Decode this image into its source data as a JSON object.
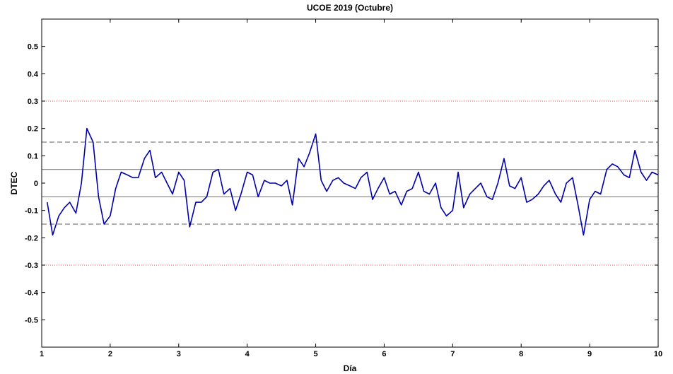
{
  "chart_data": {
    "type": "line",
    "title": "UCOE 2019 (Octubre)",
    "xlabel": "Día",
    "ylabel": "DTEC",
    "xlim": [
      1,
      10
    ],
    "ylim": [
      -0.6,
      0.6
    ],
    "x_ticks": [
      "1",
      "2",
      "3",
      "4",
      "5",
      "6",
      "7",
      "8",
      "9",
      "10"
    ],
    "y_ticks": [
      "0.5",
      "0.4",
      "0.3",
      "0.2",
      "0.1",
      "0",
      "-0.1",
      "-0.2",
      "-0.3",
      "-0.4",
      "-0.5"
    ],
    "grid": false,
    "reference_lines": [
      {
        "y": 0.3,
        "style": "dotted",
        "color": "#ff4d4d"
      },
      {
        "y": 0.15,
        "style": "dashed",
        "color": "#7f7f7f"
      },
      {
        "y": 0.05,
        "style": "solid",
        "color": "#7f7f7f"
      },
      {
        "y": -0.05,
        "style": "solid",
        "color": "#7f7f7f"
      },
      {
        "y": -0.15,
        "style": "dashed",
        "color": "#7f7f7f"
      },
      {
        "y": -0.3,
        "style": "dotted",
        "color": "#ff4d4d"
      }
    ],
    "series": [
      {
        "color": "#0000aa",
        "x": [
          1.08,
          1.16,
          1.25,
          1.33,
          1.41,
          1.5,
          1.58,
          1.66,
          1.75,
          1.83,
          1.91,
          2.0,
          2.08,
          2.16,
          2.25,
          2.33,
          2.41,
          2.5,
          2.58,
          2.66,
          2.75,
          2.83,
          2.91,
          3.0,
          3.08,
          3.16,
          3.25,
          3.33,
          3.41,
          3.5,
          3.58,
          3.66,
          3.75,
          3.83,
          3.91,
          4.0,
          4.08,
          4.16,
          4.25,
          4.33,
          4.41,
          4.5,
          4.58,
          4.66,
          4.75,
          4.83,
          4.91,
          5.0,
          5.08,
          5.16,
          5.25,
          5.33,
          5.41,
          5.5,
          5.58,
          5.66,
          5.75,
          5.83,
          5.91,
          6.0,
          6.08,
          6.16,
          6.25,
          6.33,
          6.41,
          6.5,
          6.58,
          6.66,
          6.75,
          6.83,
          6.91,
          7.0,
          7.08,
          7.16,
          7.25,
          7.33,
          7.41,
          7.5,
          7.58,
          7.66,
          7.75,
          7.83,
          7.91,
          8.0,
          8.08,
          8.16,
          8.25,
          8.33,
          8.41,
          8.5,
          8.58,
          8.66,
          8.75,
          8.83,
          8.91,
          9.0,
          9.08,
          9.16,
          9.25,
          9.33,
          9.41,
          9.5,
          9.58,
          9.66,
          9.75,
          9.83,
          9.91,
          10.0
        ],
        "values": [
          -0.07,
          -0.19,
          -0.12,
          -0.09,
          -0.07,
          -0.11,
          0.0,
          0.2,
          0.15,
          -0.05,
          -0.15,
          -0.12,
          -0.02,
          0.04,
          0.03,
          0.02,
          0.02,
          0.09,
          0.12,
          0.02,
          0.04,
          0.0,
          -0.04,
          0.04,
          0.01,
          -0.16,
          -0.07,
          -0.07,
          -0.05,
          0.04,
          0.05,
          -0.04,
          -0.02,
          -0.1,
          -0.04,
          0.04,
          0.03,
          -0.05,
          0.01,
          0.0,
          0.0,
          -0.01,
          0.01,
          -0.08,
          0.09,
          0.06,
          0.11,
          0.18,
          0.01,
          -0.03,
          0.01,
          0.02,
          0.0,
          -0.01,
          -0.02,
          0.02,
          0.04,
          -0.06,
          -0.02,
          0.02,
          -0.04,
          -0.03,
          -0.08,
          -0.03,
          -0.02,
          0.04,
          -0.03,
          -0.04,
          0.0,
          -0.09,
          -0.12,
          -0.1,
          0.04,
          -0.09,
          -0.04,
          -0.02,
          0.0,
          -0.05,
          -0.06,
          0.0,
          0.09,
          -0.01,
          -0.02,
          0.02,
          -0.07,
          -0.06,
          -0.04,
          -0.01,
          0.01,
          -0.04,
          -0.07,
          0.0,
          0.02,
          -0.08,
          -0.19,
          -0.06,
          -0.03,
          -0.04,
          0.05,
          0.07,
          0.06,
          0.03,
          0.02,
          0.12,
          0.04,
          0.01,
          0.04,
          0.03
        ]
      }
    ]
  }
}
